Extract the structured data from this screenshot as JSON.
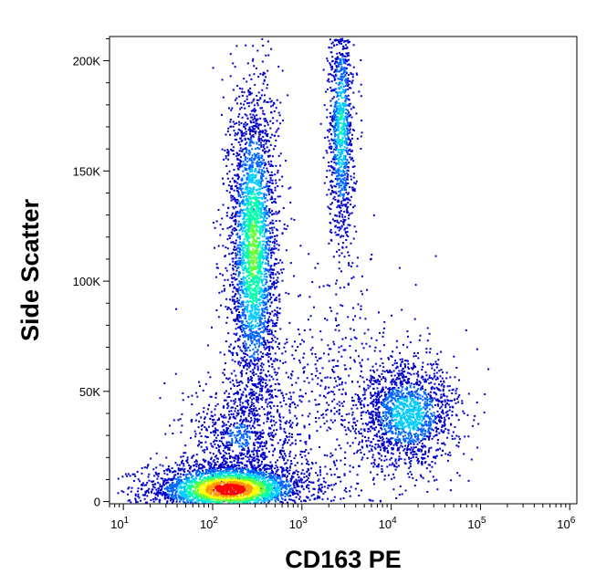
{
  "chart_data": {
    "type": "scatter",
    "style": "density dot plot (flow cytometry)",
    "title": "",
    "xlabel": "CD163 PE",
    "ylabel": "Side Scatter",
    "x_scale": "log",
    "xlim": [
      7,
      1200000
    ],
    "ylim": [
      -1000,
      211000
    ],
    "x_ticks": [
      {
        "value": 10,
        "base": "10",
        "exp": "1"
      },
      {
        "value": 100,
        "base": "10",
        "exp": "2"
      },
      {
        "value": 1000,
        "base": "10",
        "exp": "3"
      },
      {
        "value": 10000,
        "base": "10",
        "exp": "4"
      },
      {
        "value": 100000,
        "base": "10",
        "exp": "5"
      },
      {
        "value": 1000000,
        "base": "10",
        "exp": "6"
      }
    ],
    "y_ticks": [
      {
        "value": 0,
        "label": "0"
      },
      {
        "value": 50000,
        "label": "50K"
      },
      {
        "value": 100000,
        "label": "100K"
      },
      {
        "value": 150000,
        "label": "150K"
      },
      {
        "value": 200000,
        "label": "200K"
      }
    ],
    "grid": false,
    "legend": "none",
    "color_scale": [
      "#0000cc",
      "#0066ff",
      "#00ccff",
      "#00ffaa",
      "#66ff33",
      "#ffff00",
      "#ff9900",
      "#ff0000"
    ],
    "populations": [
      {
        "center_x": 150,
        "center_y": 6000,
        "x_spread_decades": 0.45,
        "y_spread": 6000,
        "count": 3200,
        "peak_density": 1.0
      },
      {
        "center_x": 280,
        "center_y": 115000,
        "x_spread_decades": 0.14,
        "y_spread": 38000,
        "count": 3000,
        "peak_density": 0.55
      },
      {
        "center_x": 2700,
        "center_y": 170000,
        "x_spread_decades": 0.07,
        "y_spread": 28000,
        "count": 1100,
        "peak_density": 0.4
      },
      {
        "center_x": 15000,
        "center_y": 40000,
        "x_spread_decades": 0.28,
        "y_spread": 12000,
        "count": 1600,
        "peak_density": 0.35
      },
      {
        "center_x": 200,
        "center_y": 30000,
        "x_spread_decades": 0.3,
        "y_spread": 12000,
        "count": 700,
        "peak_density": 0.15
      },
      {
        "center_x": 2000,
        "center_y": 45000,
        "x_spread_decades": 0.55,
        "y_spread": 30000,
        "count": 700,
        "peak_density": 0.05
      }
    ]
  }
}
